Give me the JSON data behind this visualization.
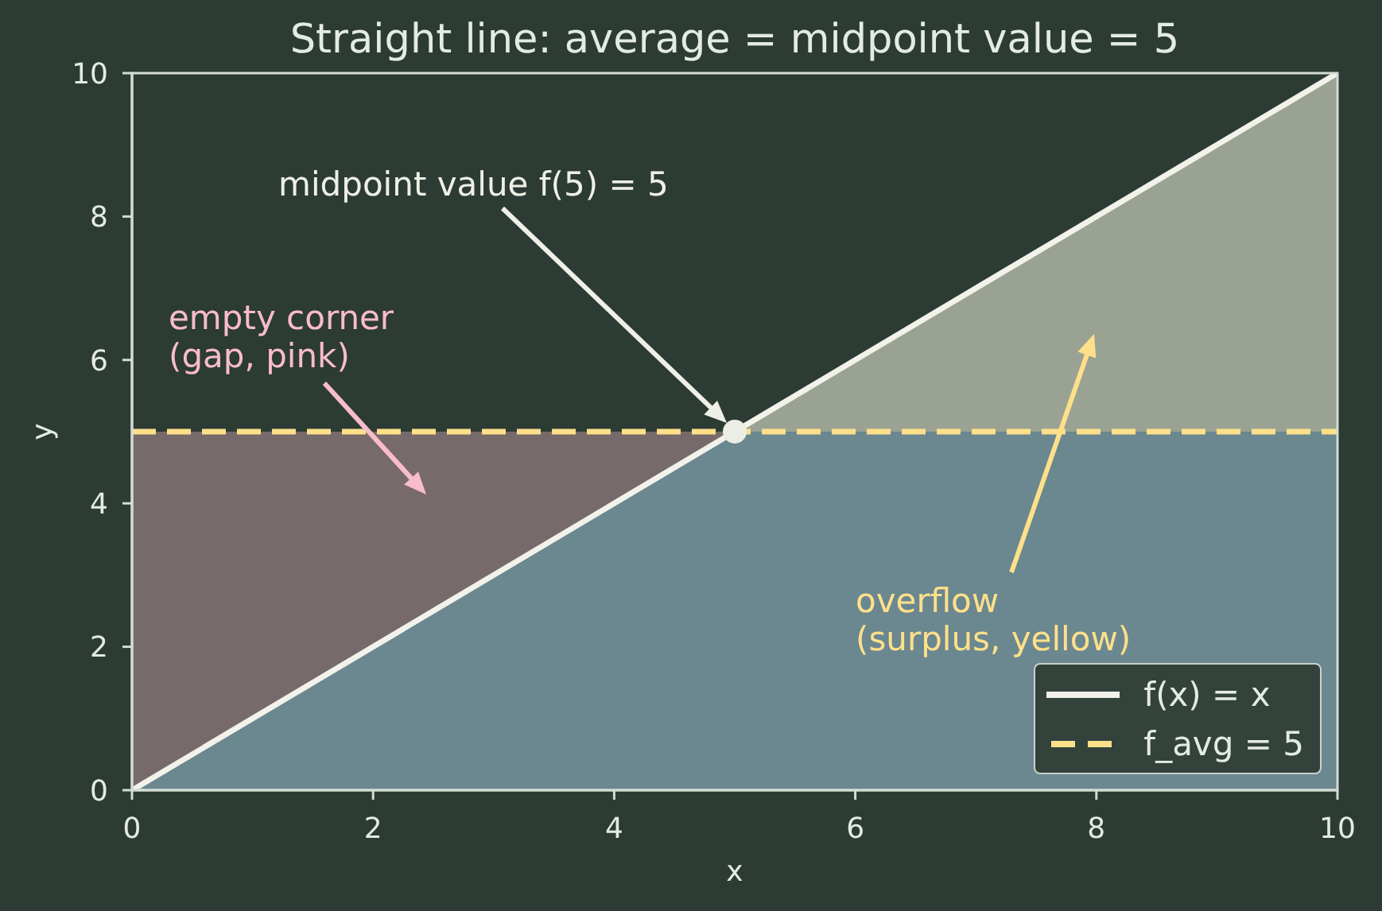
{
  "chart_data": {
    "type": "line",
    "title": "Straight line: average = midpoint value = 5",
    "xlabel": "x",
    "ylabel": "y",
    "xlim": [
      0,
      10
    ],
    "ylim": [
      0,
      10
    ],
    "xticks": [
      0,
      2,
      4,
      6,
      8,
      10
    ],
    "yticks": [
      0,
      2,
      4,
      6,
      8,
      10
    ],
    "series": [
      {
        "type": "area",
        "x": [
          5,
          10
        ],
        "values": [
          5,
          10
        ],
        "color": "#9aa393"
      },
      {
        "type": "area",
        "x": [
          0,
          5
        ],
        "values": [
          5,
          5
        ],
        "color": "#766a6a"
      },
      {
        "type": "area",
        "x": [
          0,
          5,
          10
        ],
        "values": [
          0,
          5,
          5
        ],
        "color": "#6b8790"
      },
      {
        "name": "f(x) = x",
        "x": [
          0,
          10
        ],
        "values": [
          0,
          10
        ],
        "color": "#f2f2ea"
      },
      {
        "name": "f_avg = 5",
        "x": [
          0,
          10
        ],
        "values": [
          5,
          5
        ],
        "color": "#ffe08a",
        "line_style": "dashed"
      },
      {
        "type": "scatter",
        "x": [
          5
        ],
        "values": [
          5
        ],
        "color": "#ecede4",
        "marker": "circle"
      }
    ],
    "legend": "bottom right",
    "annotations": [
      "midpoint value f(5) = 5",
      "empty corner\n(gap, pink)",
      "overflow\n(surplus, yellow)"
    ]
  }
}
